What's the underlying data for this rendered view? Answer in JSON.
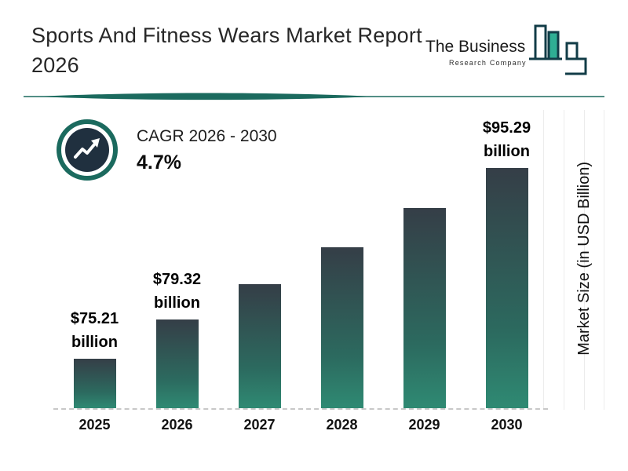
{
  "header": {
    "title": "Sports And Fitness Wears Market Report 2026",
    "logo": {
      "name": "The Business",
      "sub": "Research Company"
    }
  },
  "cagr": {
    "label": "CAGR 2026 - 2030",
    "value": "4.7%"
  },
  "chart_data": {
    "type": "bar",
    "title": "Sports And Fitness Wears Market Report 2026",
    "categories": [
      "2025",
      "2026",
      "2027",
      "2028",
      "2029",
      "2030"
    ],
    "values": [
      75.21,
      79.32,
      83.05,
      86.96,
      91.05,
      95.29
    ],
    "value_labels": [
      {
        "amount": "$75.21",
        "unit": "billion"
      },
      {
        "amount": "$79.32",
        "unit": "billion"
      },
      null,
      null,
      null,
      {
        "amount": "$95.29",
        "unit": "billion"
      }
    ],
    "xlabel": "",
    "ylabel": "Market Size (in USD Billion)",
    "ylim": [
      70,
      96
    ],
    "grid": "faint vertical lines at right edge",
    "legend": "none"
  },
  "colors": {
    "accent_teal": "#1b6a5e",
    "dark_navy": "#20303f",
    "bar_top": "#353e47",
    "bar_bottom": "#2f8a73",
    "logo_bar_fill": "#2fae94"
  }
}
